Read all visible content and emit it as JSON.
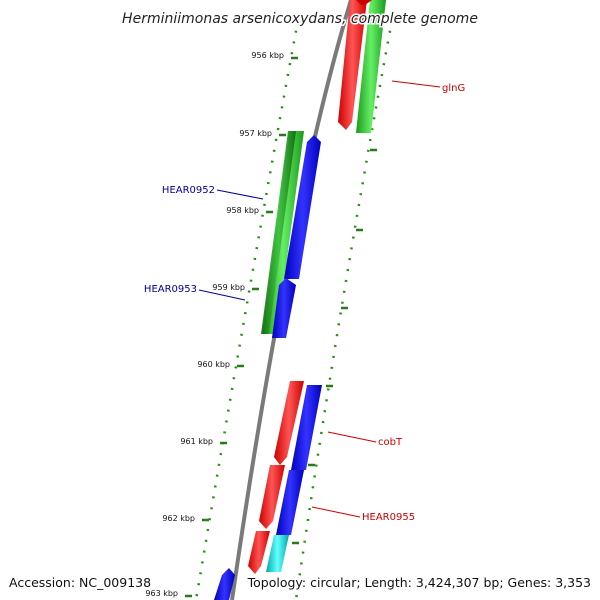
{
  "title": "Herminiimonas arsenicoxydans, complete genome",
  "footer": {
    "accession": "Accession: NC_009138",
    "topology": "Topology: circular; Length: 3,424,307 bp; Genes: 3,353"
  },
  "colors": {
    "backbone": "#7a7a7a",
    "tick": "#2a7a1a",
    "forward_green": "#33cc33",
    "dark_green": "#1e8f1e",
    "red": "#ff0000",
    "blue": "#0000ff",
    "cyan": "#00cccc",
    "label_red": "#cc0000",
    "label_blue": "#000099"
  },
  "kbp_labels": [
    "956 kbp",
    "957 kbp",
    "958 kbp",
    "959 kbp",
    "960 kbp",
    "961 kbp",
    "962 kbp",
    "963 kbp"
  ],
  "gene_labels": [
    {
      "name": "glnG",
      "color": "red"
    },
    {
      "name": "HEAR0952",
      "color": "blue"
    },
    {
      "name": "HEAR0953",
      "color": "blue"
    },
    {
      "name": "cobT",
      "color": "red"
    },
    {
      "name": "HEAR0955",
      "color": "red"
    }
  ]
}
